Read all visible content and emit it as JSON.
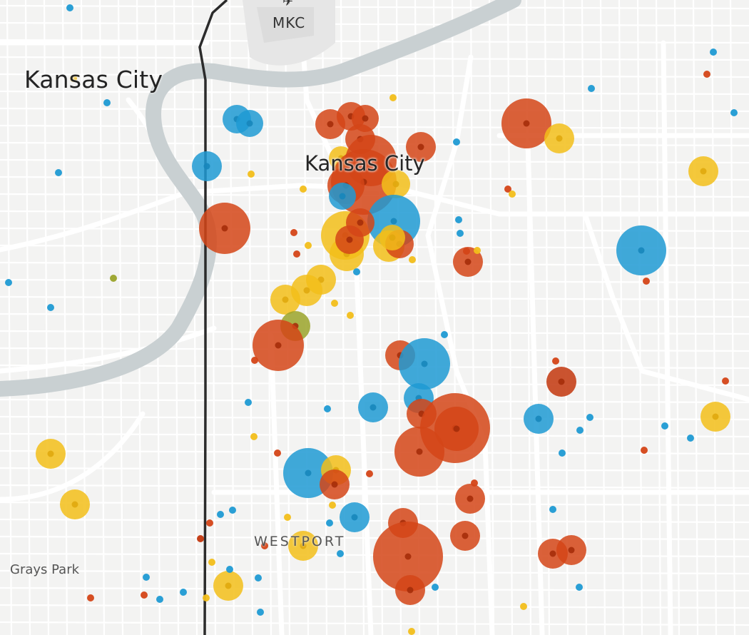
{
  "labels": {
    "kansas_city_ks": "Kansas City",
    "kansas_city_mo": "Kansas City",
    "airport": "MKC",
    "westport": "WESTPORT",
    "grays_park": "Grays Park"
  },
  "colors": {
    "background": "#f3f3f2",
    "road": "#ffffff",
    "river": "#c9d0d2",
    "state_line": "#2b2b2b",
    "blue": "#1f9ad3",
    "yellow": "#f2be1a",
    "red_orange": "#d44517",
    "dark_red": "#c2360d",
    "olive": "#9aa32a"
  },
  "icons": {
    "airport": "airport-icon"
  }
}
